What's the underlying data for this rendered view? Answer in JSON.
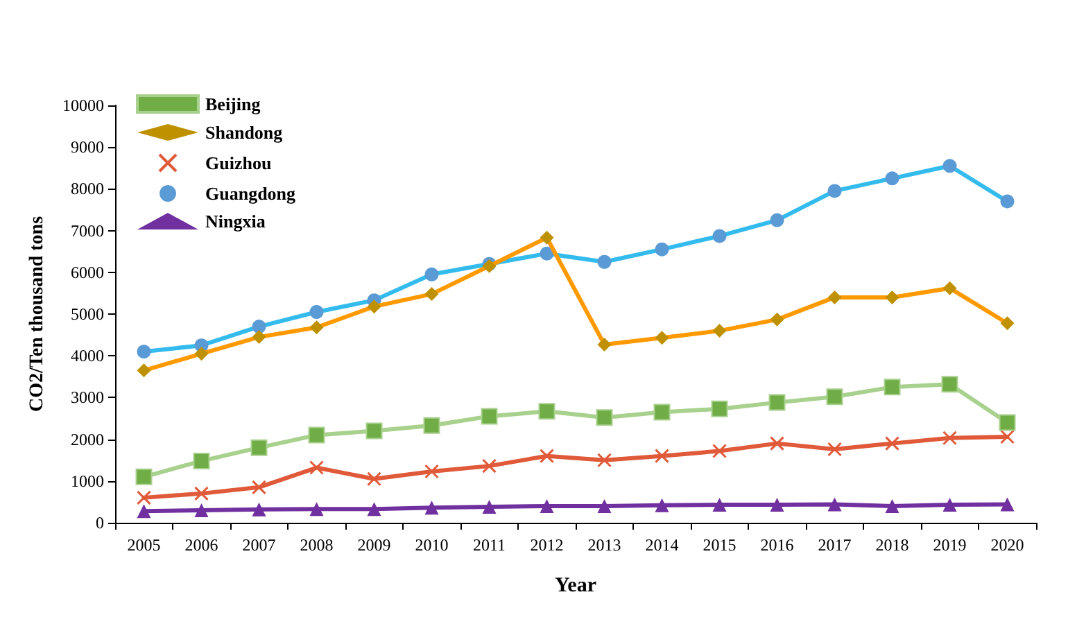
{
  "chart_data": {
    "type": "line",
    "xlabel": "Year",
    "ylabel": "CO2/Ten thousand tons",
    "categories": [
      "2005",
      "2006",
      "2007",
      "2008",
      "2009",
      "2010",
      "2011",
      "2012",
      "2013",
      "2014",
      "2015",
      "2016",
      "2017",
      "2018",
      "2019",
      "2020"
    ],
    "series": [
      {
        "name": "Beijing",
        "color": "#a9d18e",
        "marker": "square",
        "values": [
          1100,
          1480,
          1800,
          2100,
          2200,
          2330,
          2550,
          2670,
          2520,
          2650,
          2730,
          2880,
          3020,
          3250,
          3320,
          2400
        ]
      },
      {
        "name": "Shandong",
        "color": "#ff9900",
        "marker": "diamond",
        "values": [
          3650,
          4050,
          4450,
          4680,
          5180,
          5480,
          6150,
          6830,
          4270,
          4430,
          4600,
          4870,
          5400,
          5400,
          5620,
          4780
        ]
      },
      {
        "name": "Guizhou",
        "color": "#e05a3a",
        "marker": "cross",
        "values": [
          600,
          700,
          850,
          1320,
          1050,
          1230,
          1360,
          1600,
          1500,
          1600,
          1720,
          1900,
          1760,
          1900,
          2030,
          2060
        ]
      },
      {
        "name": "Guangdong",
        "color": "#33bbee",
        "marker": "circle",
        "values": [
          4100,
          4250,
          4700,
          5050,
          5330,
          5950,
          6200,
          6450,
          6250,
          6550,
          6870,
          7250,
          7950,
          8250,
          8550,
          7700
        ]
      },
      {
        "name": "Ningxia",
        "color": "#7030a0",
        "marker": "triangle",
        "values": [
          280,
          300,
          320,
          330,
          330,
          360,
          380,
          400,
          400,
          420,
          430,
          430,
          440,
          400,
          430,
          440
        ]
      }
    ],
    "ylim": [
      0,
      10000
    ],
    "yticks": [
      0,
      1000,
      2000,
      3000,
      4000,
      5000,
      6000,
      7000,
      8000,
      9000,
      10000
    ],
    "grid": false,
    "legend": "top left",
    "line_style": "solid"
  }
}
